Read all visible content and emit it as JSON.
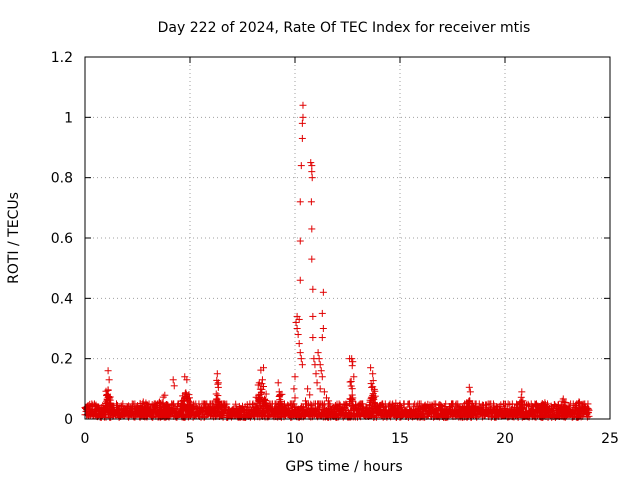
{
  "chart_data": {
    "type": "scatter",
    "title": "Day 222 of 2024, Rate Of TEC Index for receiver mtis",
    "xlabel": "GPS time / hours",
    "ylabel": "ROTI / TECUs",
    "xlim": [
      0,
      25
    ],
    "ylim": [
      0,
      1.2
    ],
    "xticks": [
      "0",
      "5",
      "10",
      "15",
      "20",
      "25"
    ],
    "yticks": [
      "0",
      "0.2",
      "0.4",
      "0.6",
      "0.8",
      "1",
      "1.2"
    ],
    "xtick_values": [
      0,
      5,
      10,
      15,
      20,
      25
    ],
    "ytick_values": [
      0,
      0.2,
      0.4,
      0.6,
      0.8,
      1.0,
      1.2
    ],
    "grid": true,
    "marker": "+",
    "marker_color": "#e00000",
    "baseline": {
      "x_start": 0,
      "x_end": 24,
      "step": 0.025,
      "typical_max": 0.05,
      "bumps": [
        {
          "x": 1.1,
          "peak": 0.16,
          "width": 0.15
        },
        {
          "x": 2.8,
          "peak": 0.07,
          "width": 0.4
        },
        {
          "x": 3.8,
          "peak": 0.09,
          "width": 0.4
        },
        {
          "x": 4.8,
          "peak": 0.14,
          "width": 0.25
        },
        {
          "x": 6.3,
          "peak": 0.15,
          "width": 0.12
        },
        {
          "x": 7.4,
          "peak": 0.06,
          "width": 0.3
        },
        {
          "x": 8.4,
          "peak": 0.18,
          "width": 0.25
        },
        {
          "x": 9.3,
          "peak": 0.12,
          "width": 0.15
        },
        {
          "x": 12.7,
          "peak": 0.21,
          "width": 0.12
        },
        {
          "x": 13.7,
          "peak": 0.17,
          "width": 0.15
        },
        {
          "x": 14.8,
          "peak": 0.06,
          "width": 0.3
        },
        {
          "x": 18.3,
          "peak": 0.11,
          "width": 0.15
        },
        {
          "x": 19.5,
          "peak": 0.05,
          "width": 0.3
        },
        {
          "x": 20.8,
          "peak": 0.09,
          "width": 0.15
        },
        {
          "x": 21.8,
          "peak": 0.08,
          "width": 0.3
        },
        {
          "x": 22.8,
          "peak": 0.07,
          "width": 0.3
        },
        {
          "x": 23.5,
          "peak": 0.06,
          "width": 0.3
        }
      ]
    },
    "points": [
      {
        "x": 10.05,
        "y": 0.32
      },
      {
        "x": 10.1,
        "y": 0.3
      },
      {
        "x": 10.15,
        "y": 0.28
      },
      {
        "x": 10.2,
        "y": 0.25
      },
      {
        "x": 10.25,
        "y": 0.22
      },
      {
        "x": 10.3,
        "y": 0.2
      },
      {
        "x": 10.35,
        "y": 0.18
      },
      {
        "x": 10.1,
        "y": 0.34
      },
      {
        "x": 10.2,
        "y": 0.33
      },
      {
        "x": 10.25,
        "y": 0.46
      },
      {
        "x": 10.25,
        "y": 0.59
      },
      {
        "x": 10.25,
        "y": 0.72
      },
      {
        "x": 10.3,
        "y": 0.84
      },
      {
        "x": 10.35,
        "y": 0.93
      },
      {
        "x": 10.35,
        "y": 0.98
      },
      {
        "x": 10.38,
        "y": 1.0
      },
      {
        "x": 10.38,
        "y": 1.04
      },
      {
        "x": 10.75,
        "y": 0.85
      },
      {
        "x": 10.8,
        "y": 0.84
      },
      {
        "x": 10.8,
        "y": 0.82
      },
      {
        "x": 10.82,
        "y": 0.8
      },
      {
        "x": 10.78,
        "y": 0.72
      },
      {
        "x": 10.8,
        "y": 0.63
      },
      {
        "x": 10.8,
        "y": 0.53
      },
      {
        "x": 10.85,
        "y": 0.43
      },
      {
        "x": 10.85,
        "y": 0.34
      },
      {
        "x": 10.85,
        "y": 0.27
      },
      {
        "x": 10.9,
        "y": 0.2
      },
      {
        "x": 10.95,
        "y": 0.18
      },
      {
        "x": 11.0,
        "y": 0.15
      },
      {
        "x": 11.1,
        "y": 0.22
      },
      {
        "x": 11.15,
        "y": 0.2
      },
      {
        "x": 11.2,
        "y": 0.18
      },
      {
        "x": 11.25,
        "y": 0.16
      },
      {
        "x": 11.3,
        "y": 0.14
      },
      {
        "x": 11.05,
        "y": 0.12
      },
      {
        "x": 11.2,
        "y": 0.1
      },
      {
        "x": 11.35,
        "y": 0.3
      },
      {
        "x": 11.35,
        "y": 0.42
      },
      {
        "x": 11.3,
        "y": 0.35
      },
      {
        "x": 11.3,
        "y": 0.27
      },
      {
        "x": 10.6,
        "y": 0.1
      },
      {
        "x": 10.7,
        "y": 0.08
      },
      {
        "x": 10.5,
        "y": 0.06
      },
      {
        "x": 11.4,
        "y": 0.09
      },
      {
        "x": 11.5,
        "y": 0.07
      },
      {
        "x": 11.6,
        "y": 0.06
      },
      {
        "x": 9.95,
        "y": 0.1
      },
      {
        "x": 10.0,
        "y": 0.14
      },
      {
        "x": 10.0,
        "y": 0.07
      },
      {
        "x": 12.6,
        "y": 0.2
      },
      {
        "x": 12.7,
        "y": 0.2
      },
      {
        "x": 12.75,
        "y": 0.19
      },
      {
        "x": 12.8,
        "y": 0.14
      },
      {
        "x": 13.6,
        "y": 0.17
      },
      {
        "x": 13.7,
        "y": 0.15
      },
      {
        "x": 8.5,
        "y": 0.17
      },
      {
        "x": 8.45,
        "y": 0.13
      },
      {
        "x": 9.2,
        "y": 0.12
      },
      {
        "x": 9.25,
        "y": 0.09
      },
      {
        "x": 1.1,
        "y": 0.16
      },
      {
        "x": 1.15,
        "y": 0.13
      },
      {
        "x": 6.3,
        "y": 0.15
      },
      {
        "x": 6.35,
        "y": 0.12
      },
      {
        "x": 4.75,
        "y": 0.14
      },
      {
        "x": 4.85,
        "y": 0.13
      },
      {
        "x": 4.2,
        "y": 0.13
      },
      {
        "x": 4.25,
        "y": 0.11
      },
      {
        "x": 18.3,
        "y": 0.105
      },
      {
        "x": 18.35,
        "y": 0.09
      },
      {
        "x": 20.8,
        "y": 0.09
      }
    ]
  }
}
